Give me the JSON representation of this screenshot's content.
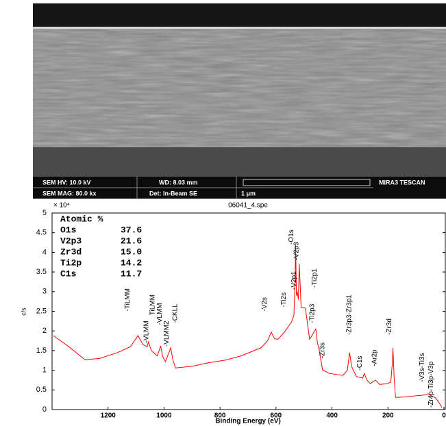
{
  "sem_image": {
    "hv": "SEM HV: 10.0 kV",
    "wd": "WD: 8.03 mm",
    "brand": "MIRA3 TESCAN",
    "mag": "SEM MAG: 80.0 kx",
    "det": "Det: In-Beam SE",
    "scale": "1 μm"
  },
  "chart_data": {
    "type": "line",
    "title": "06041_4.spe",
    "x_label": "Binding Energy (eV)",
    "y_label": "c/s",
    "y_multiplier": "× 10⁴",
    "color": "#ff0000",
    "x": [
      1395,
      1340,
      1283,
      1230,
      1166,
      1120,
      1093,
      1075,
      1060,
      1056,
      1045,
      1024,
      1012,
      1005,
      995,
      976,
      968,
      959,
      900,
      849,
      780,
      727,
      654,
      630,
      617,
      605,
      593,
      570,
      544,
      536,
      532,
      530,
      527,
      524,
      520,
      517,
      510,
      495,
      480,
      470,
      458,
      452,
      446,
      434,
      410,
      361,
      345,
      337,
      330,
      324,
      312,
      290,
      285,
      275,
      263,
      244,
      230,
      202,
      190,
      184,
      182,
      178,
      173,
      140,
      100,
      70,
      56,
      45,
      30,
      15,
      7
    ],
    "values": [
      1.88,
      1.6,
      1.27,
      1.3,
      1.45,
      1.6,
      1.88,
      1.65,
      1.6,
      1.72,
      1.5,
      1.36,
      1.62,
      1.35,
      1.22,
      1.57,
      1.25,
      1.06,
      1.1,
      1.18,
      1.26,
      1.36,
      1.57,
      1.75,
      1.97,
      1.8,
      1.79,
      1.97,
      2.23,
      2.4,
      3.2,
      4.2,
      2.9,
      3.0,
      2.8,
      3.7,
      2.6,
      2.58,
      1.79,
      1.9,
      2.05,
      1.7,
      1.53,
      1.01,
      0.92,
      0.87,
      1.0,
      1.45,
      1.1,
      1.0,
      0.84,
      0.8,
      0.92,
      0.75,
      0.66,
      0.75,
      0.64,
      0.66,
      0.7,
      1.2,
      1.57,
      0.8,
      0.31,
      0.32,
      0.35,
      0.37,
      0.4,
      0.35,
      0.3,
      0.15,
      0.05
    ],
    "xlim": [
      1400,
      0
    ],
    "ylim": [
      0,
      5
    ],
    "xticks": [
      1200,
      1000,
      800,
      600,
      400,
      200,
      0
    ],
    "yticks": [
      0,
      0.5,
      1,
      1.5,
      2,
      2.5,
      3,
      3.5,
      4,
      4.5,
      5
    ],
    "annotations": [
      {
        "text": "-TiLMM",
        "x": 1130,
        "y": 2.5
      },
      {
        "text": "-VLMM",
        "x": 1063,
        "y": 1.7
      },
      {
        "text": "TiLMM",
        "x": 1040,
        "y": 2.4
      },
      {
        "text": "-VLMM",
        "x": 1015,
        "y": 2.15
      },
      {
        "text": "-VLMM2",
        "x": 990,
        "y": 1.6
      },
      {
        "text": "-CKLL",
        "x": 960,
        "y": 2.2
      },
      {
        "text": "-V2s",
        "x": 640,
        "y": 2.5
      },
      {
        "text": "-Ti2s",
        "x": 572,
        "y": 2.6
      },
      {
        "text": "-V2p1",
        "x": 535,
        "y": 3.05
      },
      {
        "text": "-O1s",
        "x": 545,
        "y": 4.2
      },
      {
        "text": "-V2p3",
        "x": 526,
        "y": 3.8
      },
      {
        "text": "-Ti2p1",
        "x": 462,
        "y": 3.1
      },
      {
        "text": "-Ti2p3",
        "x": 470,
        "y": 2.2
      },
      {
        "text": "-Zr3s",
        "x": 433,
        "y": 1.3
      },
      {
        "text": "-Zr3p3-Zr3p1",
        "x": 338,
        "y": 1.9
      },
      {
        "text": "-C1s",
        "x": 300,
        "y": 1.0
      },
      {
        "text": "-Ar2p",
        "x": 248,
        "y": 1.1
      },
      {
        "text": "-Zr3d",
        "x": 195,
        "y": 1.9
      },
      {
        "text": "-V3s-Ti3s",
        "x": 78,
        "y": 0.7
      },
      {
        "text": "-Zr4p-Ti3p-V3p",
        "x": 45,
        "y": 0.05
      }
    ],
    "atomic_table": {
      "title": "Atomic %",
      "rows": [
        [
          "O1s",
          "37.6"
        ],
        [
          "V2p3",
          "21.6"
        ],
        [
          "Zr3d",
          "15.0"
        ],
        [
          "Ti2p",
          "14.2"
        ],
        [
          "C1s",
          "11.7"
        ]
      ]
    }
  }
}
